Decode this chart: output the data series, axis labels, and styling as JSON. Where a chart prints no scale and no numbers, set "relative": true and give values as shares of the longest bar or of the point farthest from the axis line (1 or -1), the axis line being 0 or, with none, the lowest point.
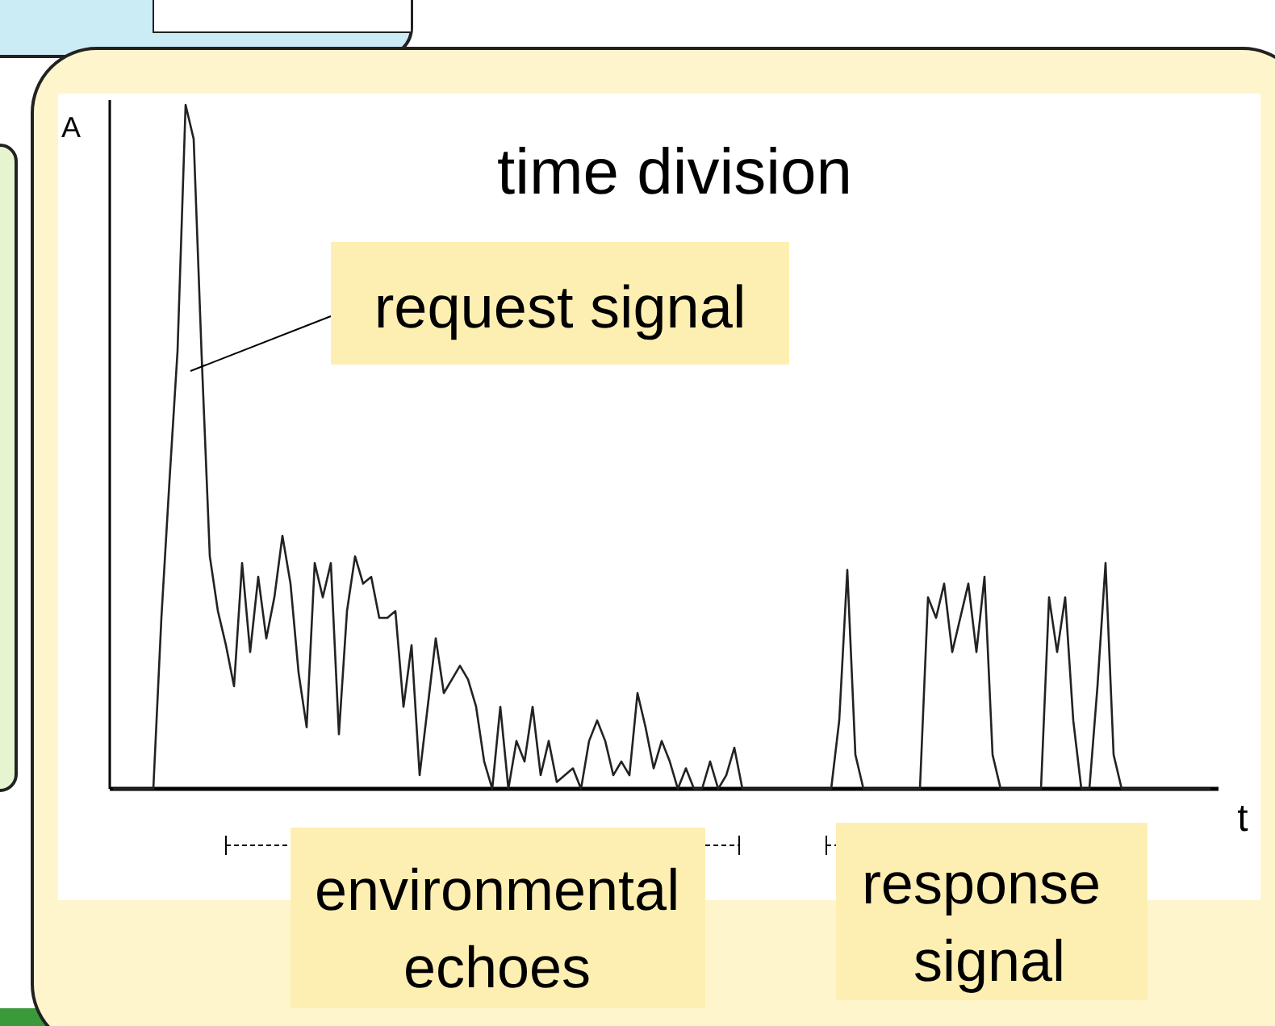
{
  "chart_data": {
    "type": "line",
    "title": "time division",
    "xlabel": "t",
    "ylabel": "A",
    "relative": true,
    "categories": [
      null,
      null,
      null,
      null,
      null,
      null,
      null,
      null,
      null,
      null,
      null,
      null,
      null,
      null,
      null,
      null,
      null,
      null,
      null,
      null,
      null,
      null,
      null,
      null,
      null,
      null,
      null,
      null,
      null,
      null,
      null,
      null,
      null,
      null,
      null,
      null,
      null,
      null,
      null,
      null,
      null,
      null,
      null,
      null,
      null,
      null,
      null,
      null,
      null,
      null,
      null,
      null,
      null,
      null,
      null,
      null,
      null,
      null,
      null,
      null,
      null,
      null,
      null,
      null,
      null,
      null,
      null,
      null,
      null,
      null,
      null,
      null,
      null,
      null,
      null,
      null,
      null,
      null,
      null,
      null,
      null,
      null,
      null,
      null,
      null,
      null,
      null,
      null,
      null,
      null,
      null,
      null,
      null,
      null,
      null,
      null,
      null,
      null,
      null,
      null,
      null,
      null,
      null,
      null,
      null,
      null,
      null,
      null,
      null,
      null,
      null,
      null,
      null,
      null,
      null,
      null,
      null,
      null,
      null,
      null,
      null,
      null,
      null,
      null,
      null,
      null,
      null,
      null,
      null,
      null,
      null,
      null,
      null,
      null,
      null,
      null,
      null
    ],
    "series": [
      {
        "color": "#222222",
        "values": [
          0,
          0,
          0,
          0,
          0,
          0,
          0.25,
          0.45,
          0.64,
          1,
          0.95,
          0.63,
          0.34,
          0.26,
          0.21,
          0.15,
          0.33,
          0.2,
          0.31,
          0.22,
          0.28,
          0.37,
          0.3,
          0.17,
          0.09,
          0.33,
          0.28,
          0.33,
          0.08,
          0.26,
          0.34,
          0.3,
          0.31,
          0.25,
          0.25,
          0.26,
          0.12,
          0.21,
          0.02,
          0.12,
          0.22,
          0.14,
          0.16,
          0.18,
          0.16,
          0.12,
          0.04,
          0,
          0.12,
          0,
          0.07,
          0.04,
          0.12,
          0.02,
          0.07,
          0.01,
          0.02,
          0.03,
          0,
          0.07,
          0.1,
          0.07,
          0.02,
          0.04,
          0.02,
          0.14,
          0.09,
          0.03,
          0.07,
          0.04,
          0,
          0.03,
          0,
          0,
          0.04,
          0,
          0.02,
          0.06,
          0,
          0,
          0,
          0,
          0,
          0,
          0,
          0,
          0,
          0,
          0,
          0,
          0.1,
          0.32,
          0.05,
          0,
          0,
          0,
          0,
          0,
          0,
          0,
          0,
          0.28,
          0.25,
          0.3,
          0.2,
          0.25,
          0.3,
          0.2,
          0.31,
          0.05,
          0,
          0,
          0,
          0,
          0,
          0,
          0.28,
          0.2,
          0.28,
          0.1,
          0,
          0,
          0.15,
          0.33,
          0.05,
          0,
          0,
          0,
          0,
          0,
          0,
          0,
          0,
          0,
          0,
          0,
          0
        ]
      }
    ],
    "annotations": [
      "request signal",
      "environmental echoes",
      "response signal"
    ]
  }
}
